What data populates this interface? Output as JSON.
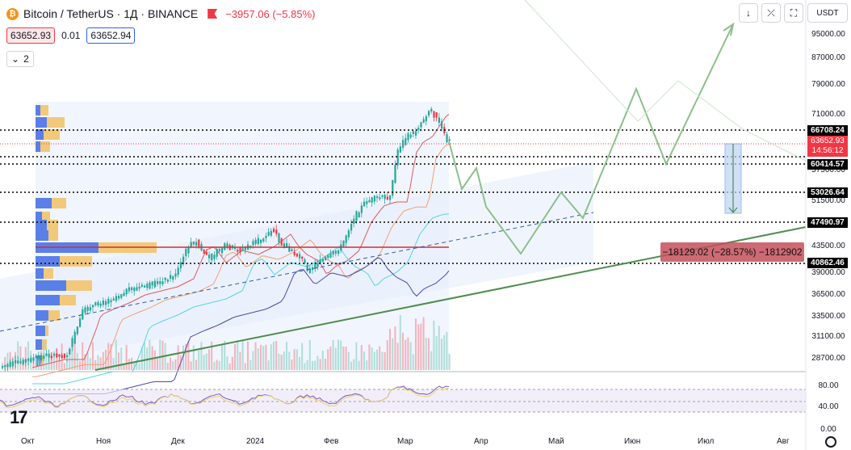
{
  "header": {
    "symbol": "Bitcoin / TetherUS · 1Д · BINANCE",
    "coin_glyph": "₿",
    "change": "−3957.06 (−5.85%)"
  },
  "prices": {
    "bid": "63652.93",
    "spread": "0.01",
    "ask": "63652.94"
  },
  "indicators": {
    "count": "2",
    "toggle_glyph": "⌄"
  },
  "toolbar": {
    "down_glyph": "↓",
    "collapse_glyph": "⤫",
    "fullscreen_glyph": "⛶",
    "currency": "USDT"
  },
  "price_axis": {
    "ticks": [
      "95000.00",
      "87000.00",
      "79000.00",
      "71000.00",
      "57500.00",
      "51500.00",
      "43500.00",
      "39000.00",
      "36500.00",
      "33500.00",
      "31100.00",
      "28700.00"
    ],
    "rsi_ticks": [
      "80.00",
      "40.00",
      "0.00"
    ]
  },
  "levels": [
    "66708.24",
    "60414.57",
    "53026.64",
    "47490.97",
    "40862.46"
  ],
  "current": {
    "price": "63652.93",
    "countdown": "14:56:12"
  },
  "measure": {
    "label": "−18129.02 (−28.57%) −1812902"
  },
  "time_axis": [
    "Окт",
    "Ноя",
    "Дек",
    "2024",
    "Фев",
    "Мар",
    "Апр",
    "Май",
    "Июн",
    "Июл",
    "Авг"
  ],
  "logo_text": "17",
  "colors": {
    "up": "#26a69a",
    "down": "#f23645",
    "projection": "#8bc08b",
    "trend": "#4e8d4e",
    "mid_line": "#2962ff"
  }
}
